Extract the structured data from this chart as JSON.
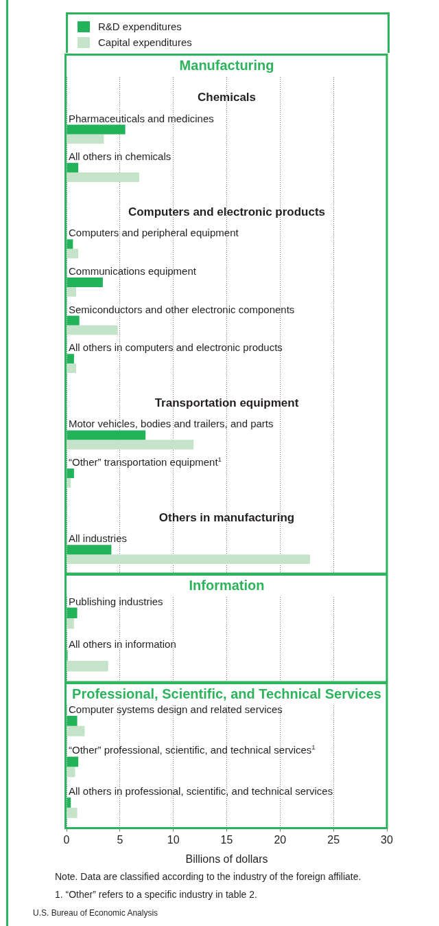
{
  "chart_data": [
    {
      "type": "bar",
      "orientation": "horizontal",
      "title": "Manufacturing",
      "categories": [
        "Chemicals",
        "Pharmaceuticals and medicines",
        "All others in chemicals",
        "Computers and electronic products",
        "Computers and peripheral equipment",
        "Communications equipment",
        "Semiconductors and other electronic components",
        "All others in computers and electronic products",
        "Transportation equipment",
        "Motor vehicles, bodies and trailers, and parts",
        "“Other” transportation equipment$^{1}$",
        "Others in manufacturing",
        "All industries"
      ],
      "series": [
        {
          "name": "R&D expenditures",
          "color": "#22b35a",
          "values": [
            null,
            5.5,
            1.1,
            null,
            0.6,
            3.4,
            1.2,
            0.7,
            null,
            7.4,
            0.7,
            null,
            4.2
          ]
        },
        {
          "name": "Capital expenditures",
          "color": "#c4e3c8",
          "values": [
            null,
            3.5,
            6.8,
            null,
            1.1,
            0.9,
            4.8,
            0.9,
            null,
            11.9,
            0.4,
            null,
            22.8
          ]
        }
      ],
      "xlim": [
        0,
        30
      ],
      "xticks": [
        0,
        5,
        10,
        15,
        20,
        25,
        30
      ],
      "grid": "x",
      "legend": "top left",
      "tick_labels": "y"
    },
    {
      "type": "bar",
      "orientation": "horizontal",
      "title": "Information",
      "categories": [
        "Publishing industries",
        "All others in information"
      ],
      "series": [
        {
          "color": "#22b35a",
          "values": [
            1.0,
            0.1
          ]
        },
        {
          "color": "#c4e3c8",
          "values": [
            0.7,
            3.9
          ]
        }
      ],
      "xlim": [
        0,
        30
      ],
      "xticks": [
        0,
        5,
        10,
        15,
        20,
        25,
        30
      ],
      "grid": "x",
      "tick_labels": "y"
    },
    {
      "type": "bar",
      "orientation": "horizontal",
      "title": "Professional, Scientific, and Technical Services",
      "xlabel": "Billions of dollars",
      "categories": [
        "Computer systems design and related services",
        "“Other” professional, scientific, and technical services$^{1}$",
        "All others in professional, scientific, and technical services"
      ],
      "series": [
        {
          "color": "#22b35a",
          "values": [
            1.0,
            1.1,
            0.4
          ]
        },
        {
          "color": "#c4e3c8",
          "values": [
            1.7,
            0.8,
            1.0
          ]
        }
      ],
      "xlim": [
        0,
        30
      ],
      "xticks": [
        0,
        5,
        10,
        15,
        20,
        25,
        30
      ],
      "grid": "x",
      "annotations": [
        "Note. Data are classified according to the industry of the foreign affiliate.",
        "1. “Other” refers to a specific industry in table 2.",
        "U.S. Bureau of Economic Analysis"
      ]
    }
  ]
}
